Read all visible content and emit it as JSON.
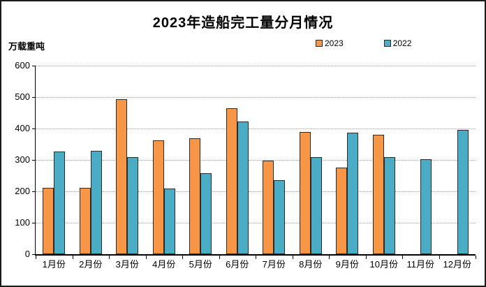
{
  "chart_data": {
    "type": "bar",
    "title": "2023年造船完工量分月情况",
    "unit": "万载重吨",
    "xlabel": "",
    "ylabel": "万载重吨",
    "categories": [
      "1月份",
      "2月份",
      "3月份",
      "4月份",
      "5月份",
      "6月份",
      "7月份",
      "8月份",
      "9月份",
      "10月份",
      "11月份",
      "12月份"
    ],
    "series": [
      {
        "name": "2023",
        "color": "#F79646",
        "values": [
          211,
          211,
          494,
          363,
          368,
          465,
          297,
          390,
          276,
          381,
          null,
          null
        ]
      },
      {
        "name": "2022",
        "color": "#4BACC6",
        "values": [
          326,
          329,
          309,
          210,
          257,
          422,
          235,
          310,
          386,
          308,
          303,
          396
        ]
      }
    ],
    "ylim": [
      0,
      600
    ],
    "y_ticks": [
      0,
      100,
      200,
      300,
      400,
      500,
      600
    ],
    "grid": "horizontal-dotted",
    "legend_position": "top-right"
  }
}
